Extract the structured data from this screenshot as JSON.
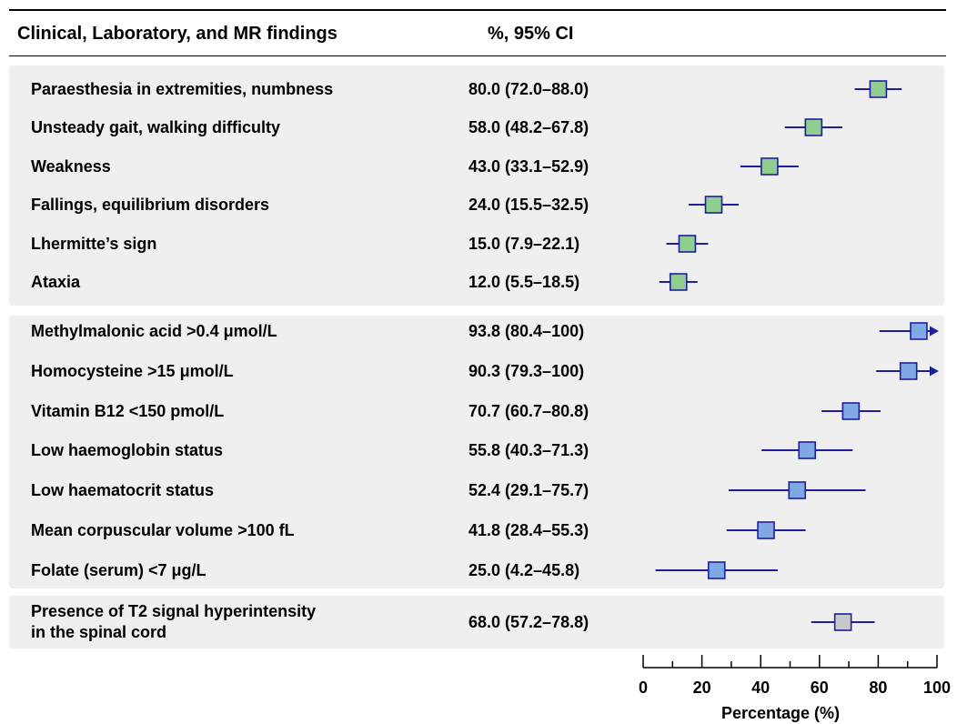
{
  "table": {
    "header_findings": "Clinical, Laboratory, and MR findings",
    "header_ci": "%, 95% CI"
  },
  "chart_data": {
    "type": "forest",
    "xlabel": "Percentage (%)",
    "xlim": [
      0,
      100
    ],
    "xticks": [
      0,
      20,
      40,
      60,
      80,
      100
    ],
    "xtick_labels": [
      "0",
      "20",
      "40",
      "60",
      "80",
      "100"
    ],
    "colors": {
      "clinical": "#8fce8f",
      "laboratory": "#7fa8e4",
      "mr": "#c8c8c8",
      "line": "#1f1f9e"
    },
    "groups": [
      {
        "color_key": "clinical",
        "rows": [
          {
            "label": "Paraesthesia in extremities, numbness",
            "ci_text": "80.0 (72.0–88.0)",
            "estimate": 80.0,
            "lower": 72.0,
            "upper": 88.0
          },
          {
            "label": "Unsteady gait, walking difficulty",
            "ci_text": "58.0 (48.2–67.8)",
            "estimate": 58.0,
            "lower": 48.2,
            "upper": 67.8
          },
          {
            "label": "Weakness",
            "ci_text": "43.0 (33.1–52.9)",
            "estimate": 43.0,
            "lower": 33.1,
            "upper": 52.9
          },
          {
            "label": "Fallings, equilibrium disorders",
            "ci_text": "24.0 (15.5–32.5)",
            "estimate": 24.0,
            "lower": 15.5,
            "upper": 32.5
          },
          {
            "label": "Lhermitte’s sign",
            "ci_text": "15.0 (7.9–22.1)",
            "estimate": 15.0,
            "lower": 7.9,
            "upper": 22.1
          },
          {
            "label": "Ataxia",
            "ci_text": "12.0 (5.5–18.5)",
            "estimate": 12.0,
            "lower": 5.5,
            "upper": 18.5
          }
        ]
      },
      {
        "color_key": "laboratory",
        "rows": [
          {
            "label": "Methylmalonic acid >0.4 μmol/L",
            "ci_text": "93.8 (80.4–100)",
            "estimate": 93.8,
            "lower": 80.4,
            "upper": 100,
            "arrow": true
          },
          {
            "label": "Homocysteine >15 μmol/L",
            "ci_text": "90.3 (79.3–100)",
            "estimate": 90.3,
            "lower": 79.3,
            "upper": 100,
            "arrow": true
          },
          {
            "label": "Vitamin B12 <150 pmol/L",
            "ci_text": "70.7 (60.7–80.8)",
            "estimate": 70.7,
            "lower": 60.7,
            "upper": 80.8
          },
          {
            "label": "Low haemoglobin status",
            "ci_text": "55.8 (40.3–71.3)",
            "estimate": 55.8,
            "lower": 40.3,
            "upper": 71.3
          },
          {
            "label": "Low haematocrit status",
            "ci_text": "52.4 (29.1–75.7)",
            "estimate": 52.4,
            "lower": 29.1,
            "upper": 75.7
          },
          {
            "label": "Mean corpuscular volume >100 fL",
            "ci_text": "41.8 (28.4–55.3)",
            "estimate": 41.8,
            "lower": 28.4,
            "upper": 55.3
          },
          {
            "label": "Folate (serum) <7 μg/L",
            "ci_text": "25.0 (4.2–45.8)",
            "estimate": 25.0,
            "lower": 4.2,
            "upper": 45.8
          }
        ]
      },
      {
        "color_key": "mr",
        "rows": [
          {
            "label": "Presence of T2 signal hyperintensity\nin the spinal cord",
            "ci_text": "68.0 (57.2–78.8)",
            "estimate": 68.0,
            "lower": 57.2,
            "upper": 78.8
          }
        ]
      }
    ]
  }
}
